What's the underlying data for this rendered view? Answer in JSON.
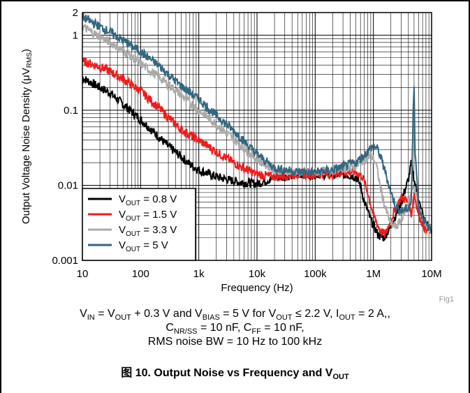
{
  "chart_data": {
    "type": "line",
    "xlabel": "Frequency (Hz)",
    "ylabel_parts": [
      "Output Voltage Noise Density (",
      "μ",
      "V",
      "RMS",
      ")"
    ],
    "x_scale": "log",
    "y_scale": "log",
    "xlim": [
      10,
      10000000
    ],
    "ylim": [
      0.001,
      2
    ],
    "grid": true,
    "legend_position": "bottom-left",
    "x_ticks": [
      {
        "value": 10,
        "label": "10"
      },
      {
        "value": 100,
        "label": "100"
      },
      {
        "value": 1000,
        "label": "1k"
      },
      {
        "value": 10000,
        "label": "10k"
      },
      {
        "value": 100000,
        "label": "100k"
      },
      {
        "value": 1000000,
        "label": "1M"
      },
      {
        "value": 10000000,
        "label": "10M"
      }
    ],
    "y_ticks": [
      {
        "value": 0.001,
        "label": "0.001"
      },
      {
        "value": 0.01,
        "label": "0.01"
      },
      {
        "value": 0.1,
        "label": "0.1"
      },
      {
        "value": 1,
        "label": "1"
      },
      {
        "value": 2,
        "label": "2"
      }
    ],
    "series": [
      {
        "legend_main": "V",
        "legend_sub": "OUT",
        "legend_rest": " = 0.8 V",
        "color": "#000000",
        "points": [
          [
            10,
            0.27
          ],
          [
            20,
            0.2
          ],
          [
            30,
            0.17
          ],
          [
            50,
            0.12
          ],
          [
            100,
            0.075
          ],
          [
            200,
            0.045
          ],
          [
            300,
            0.033
          ],
          [
            500,
            0.024
          ],
          [
            700,
            0.019
          ],
          [
            1000,
            0.016
          ],
          [
            2000,
            0.013
          ],
          [
            3000,
            0.012
          ],
          [
            5000,
            0.011
          ],
          [
            10000,
            0.0105
          ],
          [
            20000,
            0.0125
          ],
          [
            30000,
            0.013
          ],
          [
            50000,
            0.014
          ],
          [
            100000,
            0.014
          ],
          [
            200000,
            0.014
          ],
          [
            300000,
            0.014
          ],
          [
            500000,
            0.013
          ],
          [
            600000,
            0.01
          ],
          [
            700000,
            0.006
          ],
          [
            900000,
            0.0035
          ],
          [
            1200000,
            0.0022
          ],
          [
            1500000,
            0.002
          ],
          [
            2000000,
            0.0028
          ],
          [
            3000000,
            0.006
          ],
          [
            4000000,
            0.012
          ],
          [
            4500000,
            0.02
          ],
          [
            5000000,
            0.012
          ],
          [
            6000000,
            0.006
          ],
          [
            8000000,
            0.003
          ],
          [
            10000000,
            0.0025
          ]
        ]
      },
      {
        "legend_main": "V",
        "legend_sub": "OUT",
        "legend_rest": " = 1.5 V",
        "color": "#ee1c1c",
        "points": [
          [
            10,
            0.45
          ],
          [
            20,
            0.38
          ],
          [
            30,
            0.33
          ],
          [
            50,
            0.26
          ],
          [
            100,
            0.18
          ],
          [
            200,
            0.11
          ],
          [
            300,
            0.08
          ],
          [
            500,
            0.055
          ],
          [
            1000,
            0.04
          ],
          [
            2000,
            0.028
          ],
          [
            3000,
            0.023
          ],
          [
            5000,
            0.018
          ],
          [
            10000,
            0.014
          ],
          [
            20000,
            0.013
          ],
          [
            50000,
            0.014
          ],
          [
            100000,
            0.014
          ],
          [
            200000,
            0.014
          ],
          [
            300000,
            0.015
          ],
          [
            500000,
            0.015
          ],
          [
            650000,
            0.013
          ],
          [
            800000,
            0.008
          ],
          [
            1000000,
            0.004
          ],
          [
            1300000,
            0.0025
          ],
          [
            1600000,
            0.0022
          ],
          [
            2000000,
            0.0035
          ],
          [
            3000000,
            0.007
          ],
          [
            4000000,
            0.006
          ],
          [
            4500000,
            0.004
          ],
          [
            5000000,
            0.008
          ],
          [
            6000000,
            0.004
          ],
          [
            8000000,
            0.0025
          ],
          [
            10000000,
            0.0025
          ]
        ]
      },
      {
        "legend_main": "V",
        "legend_sub": "OUT",
        "legend_rest": " = 3.3 V",
        "color": "#aaaaaa",
        "points": [
          [
            10,
            1.3
          ],
          [
            20,
            0.95
          ],
          [
            30,
            0.8
          ],
          [
            50,
            0.62
          ],
          [
            100,
            0.42
          ],
          [
            200,
            0.28
          ],
          [
            300,
            0.22
          ],
          [
            500,
            0.16
          ],
          [
            1000,
            0.1
          ],
          [
            2000,
            0.065
          ],
          [
            3000,
            0.05
          ],
          [
            5000,
            0.035
          ],
          [
            7000,
            0.028
          ],
          [
            10000,
            0.022
          ],
          [
            20000,
            0.016
          ],
          [
            50000,
            0.015
          ],
          [
            100000,
            0.015
          ],
          [
            200000,
            0.016
          ],
          [
            500000,
            0.018
          ],
          [
            700000,
            0.022
          ],
          [
            900000,
            0.025
          ],
          [
            1100000,
            0.02
          ],
          [
            1300000,
            0.01
          ],
          [
            1600000,
            0.005
          ],
          [
            2000000,
            0.003
          ],
          [
            2500000,
            0.0028
          ],
          [
            3000000,
            0.0035
          ],
          [
            4000000,
            0.006
          ],
          [
            4500000,
            0.008
          ],
          [
            5000000,
            0.01
          ],
          [
            6000000,
            0.005
          ],
          [
            8000000,
            0.003
          ],
          [
            10000000,
            0.0025
          ]
        ]
      },
      {
        "legend_main": "V",
        "legend_sub": "OUT",
        "legend_rest": " = 5 V",
        "color": "#336680",
        "points": [
          [
            10,
            1.75
          ],
          [
            20,
            1.3
          ],
          [
            30,
            1.1
          ],
          [
            50,
            0.85
          ],
          [
            100,
            0.6
          ],
          [
            200,
            0.4
          ],
          [
            300,
            0.3
          ],
          [
            500,
            0.21
          ],
          [
            1000,
            0.14
          ],
          [
            2000,
            0.085
          ],
          [
            3000,
            0.065
          ],
          [
            5000,
            0.045
          ],
          [
            7000,
            0.034
          ],
          [
            10000,
            0.026
          ],
          [
            20000,
            0.017
          ],
          [
            50000,
            0.015
          ],
          [
            100000,
            0.015
          ],
          [
            200000,
            0.016
          ],
          [
            500000,
            0.02
          ],
          [
            800000,
            0.028
          ],
          [
            1000000,
            0.034
          ],
          [
            1200000,
            0.03
          ],
          [
            1500000,
            0.018
          ],
          [
            2000000,
            0.008
          ],
          [
            2500000,
            0.005
          ],
          [
            3000000,
            0.0045
          ],
          [
            4000000,
            0.005
          ],
          [
            4500000,
            0.006
          ],
          [
            4800000,
            0.08
          ],
          [
            5000000,
            0.25
          ],
          [
            5200000,
            0.03
          ],
          [
            6000000,
            0.005
          ],
          [
            8000000,
            0.003
          ],
          [
            10000000,
            0.0025
          ]
        ]
      }
    ]
  },
  "fig_id": "Fig1",
  "conditions": {
    "line1": {
      "a_main": "V",
      "a_sub": "IN",
      "b_text": " = V",
      "b_sub": "OUT",
      "c_text": " + 0.3 V and V",
      "c_sub": "BIAS",
      "d_text": " = 5 V for V",
      "d_sub": "OUT",
      "e_text": " ≤ 2.2 V, I",
      "e_sub": "OUT",
      "f_text": " = 2 A,,"
    },
    "line2": {
      "a_main": "C",
      "a_sub": "NR/SS",
      "b_text": " = 10 nF, C",
      "b_sub": "FF",
      "c_text": " = 10 nF,"
    },
    "line3": "RMS noise BW = 10 Hz to 100 kHz"
  },
  "caption": {
    "prefix": "图 10. Output Noise vs Frequency and V",
    "sub": "OUT"
  }
}
